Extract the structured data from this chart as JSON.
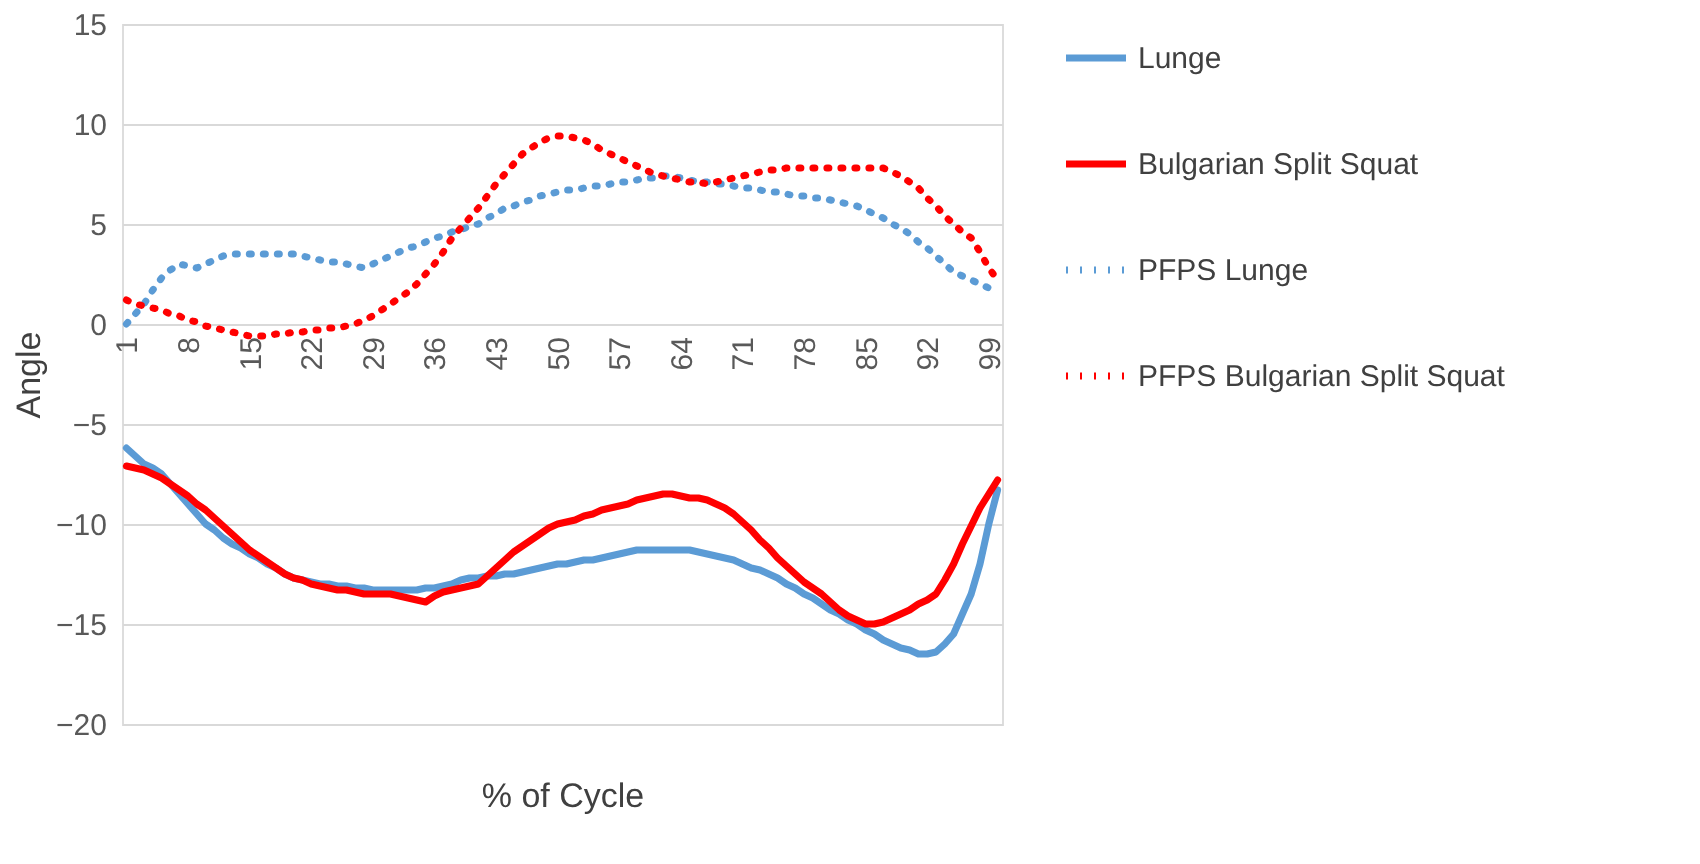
{
  "chart_data": {
    "type": "line",
    "xlabel": "% of Cycle",
    "ylabel": "Angle",
    "ylim": [
      -20,
      15
    ],
    "yticks": [
      -20,
      -15,
      -10,
      -5,
      0,
      5,
      10,
      15
    ],
    "grid": "y",
    "legend": "right",
    "categories": [
      "1",
      null,
      null,
      null,
      null,
      null,
      null,
      "8",
      null,
      null,
      null,
      null,
      null,
      null,
      "15",
      null,
      null,
      null,
      null,
      null,
      null,
      "22",
      null,
      null,
      null,
      null,
      null,
      null,
      "29",
      null,
      null,
      null,
      null,
      null,
      null,
      "36",
      null,
      null,
      null,
      null,
      null,
      null,
      "43",
      null,
      null,
      null,
      null,
      null,
      null,
      "50",
      null,
      null,
      null,
      null,
      null,
      null,
      "57",
      null,
      null,
      null,
      null,
      null,
      null,
      "64",
      null,
      null,
      null,
      null,
      null,
      null,
      "71",
      null,
      null,
      null,
      null,
      null,
      null,
      "78",
      null,
      null,
      null,
      null,
      null,
      null,
      "85",
      null,
      null,
      null,
      null,
      null,
      null,
      "92",
      null,
      null,
      null,
      null,
      null,
      null,
      "99",
      null
    ],
    "series": [
      {
        "name": "Lunge",
        "color": "#5b9bd5",
        "line_style": "solid",
        "values": [
          -6.2,
          -6.6,
          -7.0,
          -7.2,
          -7.5,
          -8.0,
          -8.5,
          -9.0,
          -9.5,
          -10.0,
          -10.3,
          -10.7,
          -11.0,
          -11.2,
          -11.5,
          -11.7,
          -12.0,
          -12.2,
          -12.5,
          -12.7,
          -12.8,
          -12.9,
          -13.0,
          -13.0,
          -13.1,
          -13.1,
          -13.2,
          -13.2,
          -13.3,
          -13.3,
          -13.3,
          -13.3,
          -13.3,
          -13.3,
          -13.2,
          -13.2,
          -13.1,
          -13.0,
          -12.8,
          -12.7,
          -12.7,
          -12.6,
          -12.6,
          -12.5,
          -12.5,
          -12.4,
          -12.3,
          -12.2,
          -12.1,
          -12.0,
          -12.0,
          -11.9,
          -11.8,
          -11.8,
          -11.7,
          -11.6,
          -11.5,
          -11.4,
          -11.3,
          -11.3,
          -11.3,
          -11.3,
          -11.3,
          -11.3,
          -11.3,
          -11.4,
          -11.5,
          -11.6,
          -11.7,
          -11.8,
          -12.0,
          -12.2,
          -12.3,
          -12.5,
          -12.7,
          -13.0,
          -13.2,
          -13.5,
          -13.7,
          -14.0,
          -14.3,
          -14.5,
          -14.8,
          -15.0,
          -15.3,
          -15.5,
          -15.8,
          -16.0,
          -16.2,
          -16.3,
          -16.5,
          -16.5,
          -16.4,
          -16.0,
          -15.5,
          -14.5,
          -13.5,
          -12.0,
          -10.0,
          -8.3
        ]
      },
      {
        "name": "Bulgarian Split Squat",
        "color": "#ff0000",
        "line_style": "solid",
        "values": [
          -7.1,
          -7.2,
          -7.3,
          -7.5,
          -7.7,
          -8.0,
          -8.3,
          -8.6,
          -9.0,
          -9.3,
          -9.7,
          -10.1,
          -10.5,
          -10.9,
          -11.3,
          -11.6,
          -11.9,
          -12.2,
          -12.5,
          -12.7,
          -12.8,
          -13.0,
          -13.1,
          -13.2,
          -13.3,
          -13.3,
          -13.4,
          -13.5,
          -13.5,
          -13.5,
          -13.5,
          -13.6,
          -13.7,
          -13.8,
          -13.9,
          -13.6,
          -13.4,
          -13.3,
          -13.2,
          -13.1,
          -13.0,
          -12.6,
          -12.2,
          -11.8,
          -11.4,
          -11.1,
          -10.8,
          -10.5,
          -10.2,
          -10.0,
          -9.9,
          -9.8,
          -9.6,
          -9.5,
          -9.3,
          -9.2,
          -9.1,
          -9.0,
          -8.8,
          -8.7,
          -8.6,
          -8.5,
          -8.5,
          -8.6,
          -8.7,
          -8.7,
          -8.8,
          -9.0,
          -9.2,
          -9.5,
          -9.9,
          -10.3,
          -10.8,
          -11.2,
          -11.7,
          -12.1,
          -12.5,
          -12.9,
          -13.2,
          -13.5,
          -13.9,
          -14.3,
          -14.6,
          -14.8,
          -15.0,
          -15.0,
          -14.9,
          -14.7,
          -14.5,
          -14.3,
          -14.0,
          -13.8,
          -13.5,
          -12.8,
          -12.0,
          -11.0,
          -10.1,
          -9.2,
          -8.5,
          -7.8
        ]
      },
      {
        "name": "PFPS Lunge",
        "color": "#5b9bd5",
        "line_style": "dotted",
        "values": [
          0.0,
          0.5,
          1.0,
          1.7,
          2.3,
          2.7,
          3.0,
          2.9,
          2.8,
          3.0,
          3.2,
          3.4,
          3.5,
          3.5,
          3.5,
          3.5,
          3.5,
          3.5,
          3.5,
          3.5,
          3.4,
          3.3,
          3.2,
          3.1,
          3.1,
          3.0,
          2.9,
          2.8,
          3.0,
          3.2,
          3.4,
          3.6,
          3.8,
          3.9,
          4.1,
          4.3,
          4.4,
          4.6,
          4.7,
          4.9,
          5.0,
          5.3,
          5.5,
          5.8,
          5.9,
          6.1,
          6.2,
          6.4,
          6.5,
          6.6,
          6.7,
          6.7,
          6.8,
          6.9,
          6.9,
          7.0,
          7.1,
          7.1,
          7.2,
          7.3,
          7.3,
          7.4,
          7.4,
          7.3,
          7.2,
          7.1,
          7.1,
          7.0,
          7.0,
          6.9,
          6.8,
          6.8,
          6.7,
          6.6,
          6.6,
          6.5,
          6.4,
          6.4,
          6.3,
          6.3,
          6.2,
          6.1,
          6.0,
          5.9,
          5.7,
          5.5,
          5.3,
          5.0,
          4.8,
          4.5,
          4.1,
          3.8,
          3.4,
          3.0,
          2.6,
          2.4,
          2.2,
          2.0,
          1.8,
          2.0
        ]
      },
      {
        "name": "PFPS Bulgarian Split Squat",
        "color": "#ff0000",
        "line_style": "dotted",
        "values": [
          1.2,
          1.0,
          0.9,
          0.8,
          0.7,
          0.5,
          0.4,
          0.2,
          0.1,
          -0.1,
          -0.2,
          -0.3,
          -0.4,
          -0.5,
          -0.6,
          -0.6,
          -0.6,
          -0.5,
          -0.5,
          -0.4,
          -0.4,
          -0.3,
          -0.3,
          -0.2,
          -0.2,
          -0.1,
          0.0,
          0.2,
          0.4,
          0.7,
          1.0,
          1.3,
          1.6,
          2.0,
          2.5,
          3.0,
          3.6,
          4.3,
          4.8,
          5.3,
          5.8,
          6.4,
          7.0,
          7.5,
          8.0,
          8.5,
          8.8,
          9.1,
          9.3,
          9.4,
          9.4,
          9.3,
          9.2,
          9.0,
          8.7,
          8.5,
          8.3,
          8.1,
          7.9,
          7.7,
          7.5,
          7.4,
          7.3,
          7.2,
          7.1,
          7.1,
          7.0,
          7.1,
          7.2,
          7.3,
          7.4,
          7.5,
          7.6,
          7.7,
          7.7,
          7.8,
          7.8,
          7.8,
          7.8,
          7.8,
          7.8,
          7.8,
          7.8,
          7.8,
          7.8,
          7.8,
          7.8,
          7.6,
          7.4,
          7.1,
          6.8,
          6.3,
          5.9,
          5.4,
          5.0,
          4.6,
          4.3,
          3.6,
          2.8,
          2.2
        ]
      }
    ]
  }
}
